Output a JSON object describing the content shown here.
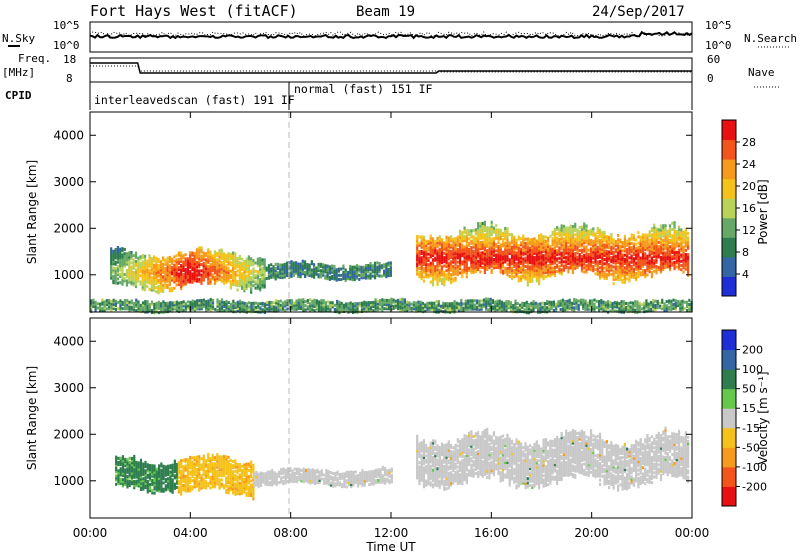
{
  "header": {
    "title": "Fort Hays West (fitACF)",
    "beam": "Beam 19",
    "date": "24/Sep/2017"
  },
  "strip": {
    "nsky_label": "N.Sky",
    "nsearch_label": "N.Search",
    "count_tick_high": "10^5",
    "count_tick_low": "10^0",
    "freq_label": "Freq.",
    "freq_unit": "[MHz]",
    "freq_tick_high": "18",
    "freq_tick_low": "8",
    "nave_label": "Nave",
    "nave_tick_high": "60",
    "nave_tick_low": "0",
    "cpid_label": "CPID",
    "cpid_segment_1": "interleavedscan (fast) 191 IF",
    "cpid_segment_2": "normal (fast) 151 IF"
  },
  "colors": {
    "power": [
      "#1f2fd8",
      "#3465a4",
      "#2e7d4f",
      "#66a866",
      "#b9d35a",
      "#f5c21b",
      "#f59a1b",
      "#f2541b",
      "#e81010"
    ],
    "velocity": [
      "#e81010",
      "#f2541b",
      "#f59a1b",
      "#f5c21b",
      "#c8c8c8",
      "#66c84a",
      "#2e7d4f",
      "#3465a4",
      "#1f2fd8"
    ]
  },
  "chart_data": [
    {
      "type": "heatmap",
      "title": "Power",
      "xlabel": "Time UT",
      "ylabel": "Slant Range [km]",
      "xlim": [
        0,
        24
      ],
      "ylim": [
        200,
        4500
      ],
      "x_ticks": [
        "00:00",
        "04:00",
        "08:00",
        "12:00",
        "16:00",
        "20:00",
        "00:00"
      ],
      "y_ticks": [
        "1000",
        "2000",
        "3000",
        "4000"
      ],
      "colorbar": {
        "label": "Power [dB]",
        "ticks": [
          "4",
          "8",
          "12",
          "16",
          "20",
          "24",
          "28"
        ],
        "range": [
          0,
          30
        ]
      },
      "regions": [
        {
          "name": "morning echo band",
          "t": [
            0.8,
            7.0
          ],
          "range_km": [
            700,
            1500
          ],
          "peak_db": 28,
          "peak_t": 4.0
        },
        {
          "name": "post-08 weak band",
          "t": [
            7.0,
            12.0
          ],
          "range_km": [
            900,
            1250
          ],
          "peak_db": 12
        },
        {
          "name": "afternoon/evening band",
          "t": [
            13.0,
            23.8
          ],
          "range_km": [
            900,
            2000
          ],
          "peak_db": 28,
          "peak_range_km": 1350
        },
        {
          "name": "near-range ground scatter",
          "t": [
            0,
            24
          ],
          "range_km": [
            200,
            450
          ],
          "peak_db": 14
        }
      ]
    },
    {
      "type": "heatmap",
      "title": "Velocity",
      "xlabel": "Time UT",
      "ylabel": "Slant Range [km]",
      "xlim": [
        0,
        24
      ],
      "ylim": [
        200,
        4500
      ],
      "x_ticks": [
        "00:00",
        "04:00",
        "08:00",
        "12:00",
        "16:00",
        "20:00",
        "00:00"
      ],
      "y_ticks": [
        "1000",
        "2000",
        "3000",
        "4000"
      ],
      "colorbar": {
        "label": "Velocity [m s⁻¹]",
        "ticks": [
          "-200",
          "-100",
          "-50",
          "-15",
          "15",
          "50",
          "100",
          "200"
        ]
      },
      "regions": [
        {
          "name": "morning positive flow",
          "t": [
            1.0,
            3.5
          ],
          "range_km": [
            800,
            1500
          ],
          "velocity_ms": 60
        },
        {
          "name": "morning negative flow",
          "t": [
            3.5,
            6.5
          ],
          "range_km": [
            700,
            1500
          ],
          "velocity_ms": -40
        },
        {
          "name": "ground scatter band",
          "t": [
            6.5,
            12.0
          ],
          "range_km": [
            900,
            1250
          ],
          "velocity_ms": 0
        },
        {
          "name": "afternoon/evening ground scatter",
          "t": [
            13.0,
            23.8
          ],
          "range_km": [
            900,
            2000
          ],
          "velocity_ms": 0
        }
      ]
    }
  ]
}
